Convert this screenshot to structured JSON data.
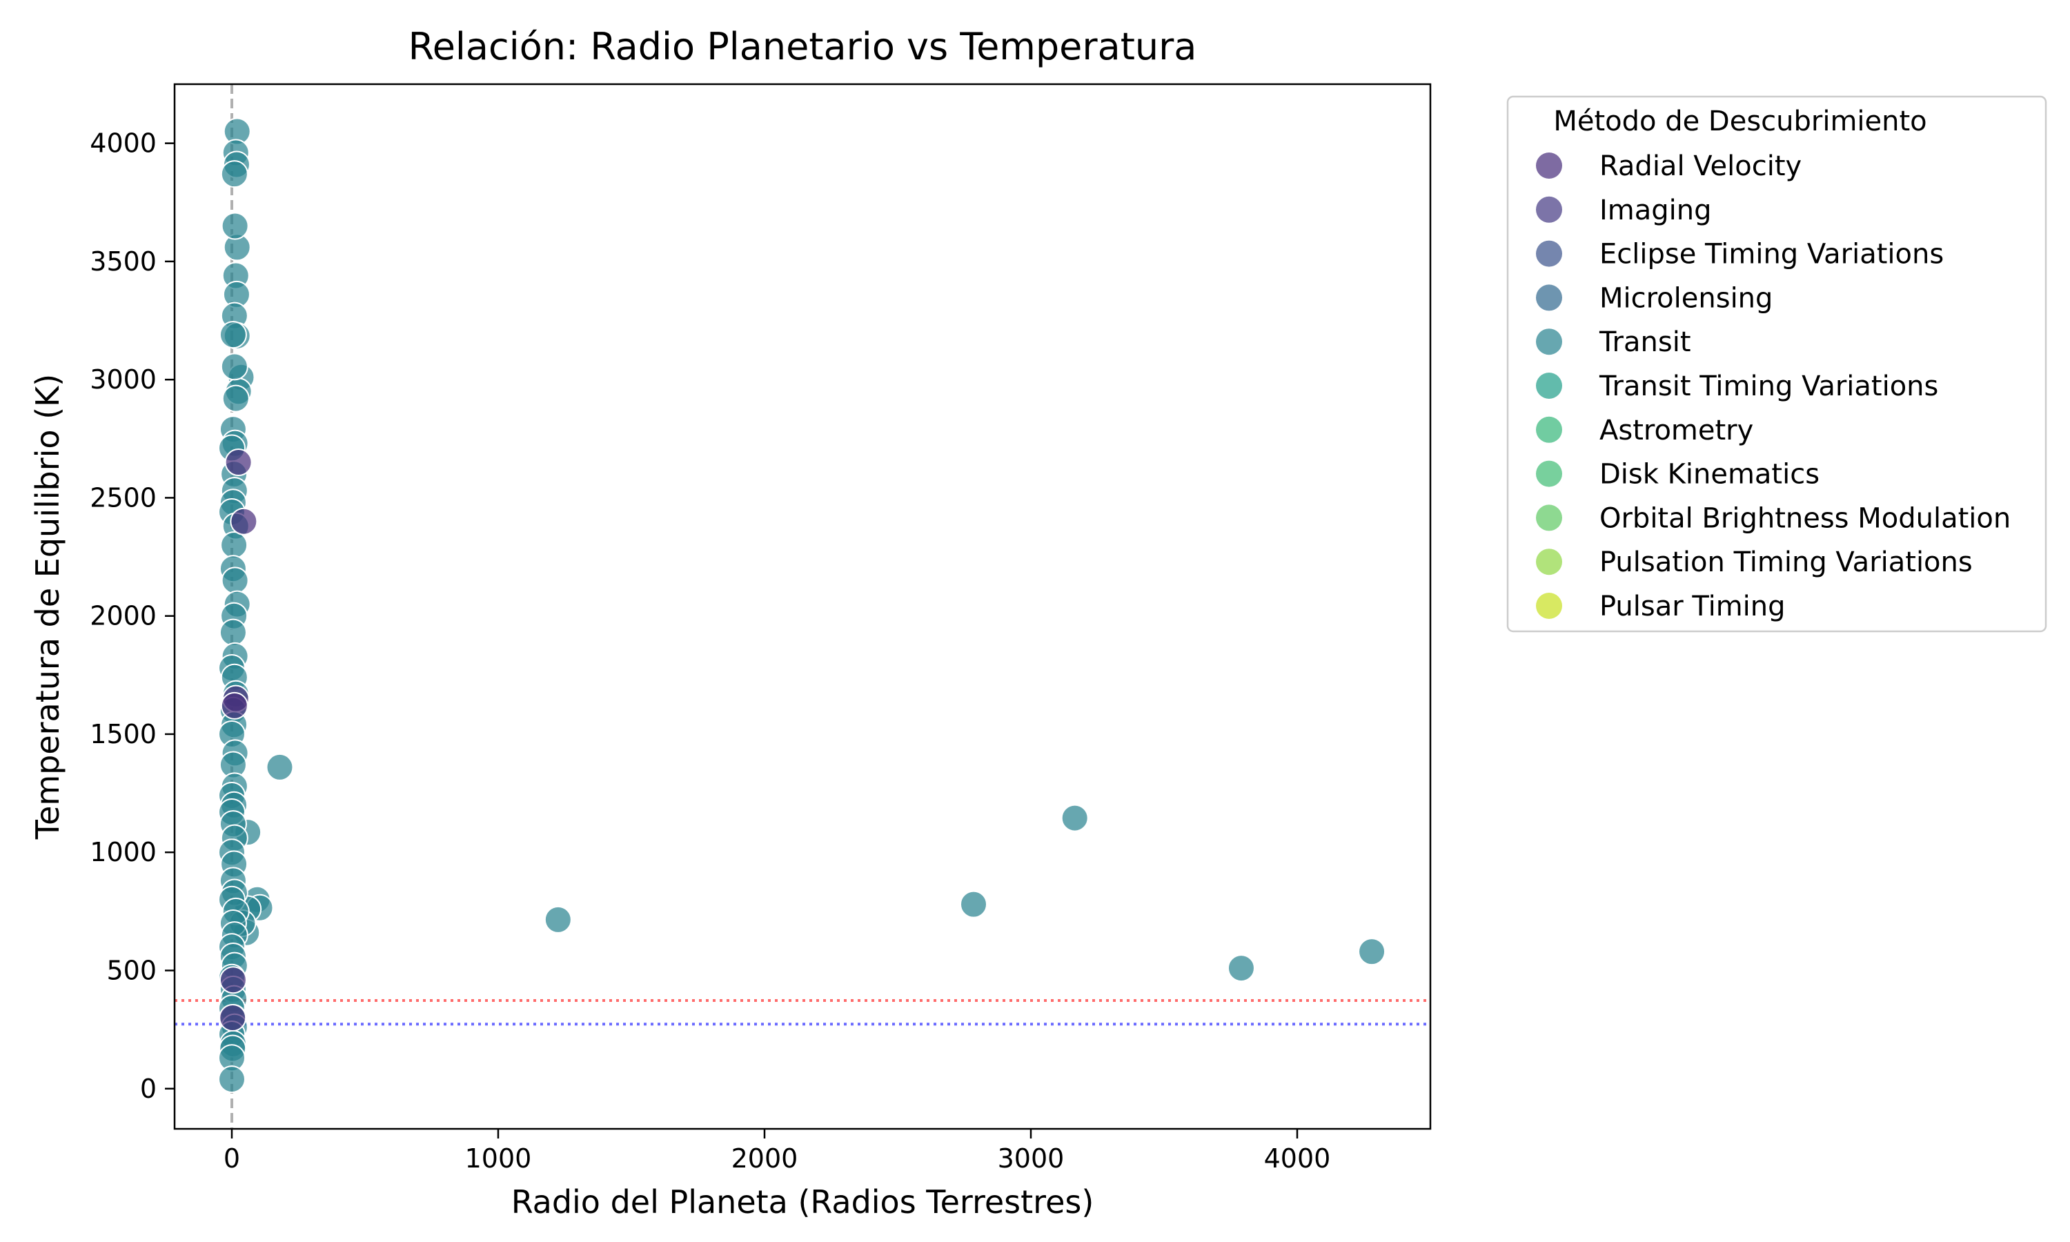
{
  "chart_data": {
    "type": "scatter",
    "title": "Relación: Radio Planetario vs Temperatura",
    "xlabel": "Radio del Planeta (Radios Terrestres)",
    "ylabel": "Temperatura de Equilibrio (K)",
    "xlim": [
      -215,
      4500
    ],
    "ylim": [
      -170,
      4250
    ],
    "xticks": [
      0,
      1000,
      2000,
      3000,
      4000
    ],
    "yticks": [
      0,
      500,
      1000,
      1500,
      2000,
      2500,
      3000,
      3500,
      4000
    ],
    "grid": false,
    "legend": {
      "title": "Método de Descubrimiento",
      "placement": "outside-right",
      "entries": [
        {
          "label": "Radial Velocity",
          "color": "#472c7a"
        },
        {
          "label": "Imaging",
          "color": "#443983"
        },
        {
          "label": "Eclipse Timing Variations",
          "color": "#3b528b"
        },
        {
          "label": "Microlensing",
          "color": "#31688e"
        },
        {
          "label": "Transit",
          "color": "#26828e"
        },
        {
          "label": "Transit Timing Variations",
          "color": "#1f9e89"
        },
        {
          "label": "Astrometry",
          "color": "#35b779"
        },
        {
          "label": "Disk Kinematics",
          "color": "#3fbc73"
        },
        {
          "label": "Orbital Brightness Modulation",
          "color": "#5ec962"
        },
        {
          "label": "Pulsation Timing Variations",
          "color": "#90d743"
        },
        {
          "label": "Pulsar Timing",
          "color": "#c8e020"
        }
      ]
    },
    "reference_lines": [
      {
        "orientation": "vertical",
        "x": 0,
        "color": "#b0b0b0",
        "style": "dashed"
      },
      {
        "orientation": "horizontal",
        "y": 373,
        "color": "#ff6b6b",
        "style": "dotted"
      },
      {
        "orientation": "horizontal",
        "y": 273,
        "color": "#6b6bff",
        "style": "dotted"
      }
    ],
    "series": [
      {
        "name": "Transit",
        "color": "#26828e",
        "points": [
          [
            180,
            1360
          ],
          [
            1225,
            715
          ],
          [
            2785,
            780
          ],
          [
            3165,
            1145
          ],
          [
            3790,
            510
          ],
          [
            4280,
            580
          ],
          [
            60,
            1085
          ],
          [
            95,
            800
          ],
          [
            105,
            765
          ],
          [
            60,
            760
          ],
          [
            55,
            660
          ],
          [
            40,
            700
          ],
          [
            35,
            3010
          ],
          [
            25,
            2950
          ],
          [
            20,
            4050
          ],
          [
            15,
            3960
          ],
          [
            18,
            3910
          ],
          [
            10,
            3870
          ],
          [
            20,
            3560
          ],
          [
            12,
            3650
          ],
          [
            15,
            3440
          ],
          [
            18,
            3360
          ],
          [
            10,
            3270
          ],
          [
            20,
            3185
          ],
          [
            5,
            3190
          ],
          [
            10,
            3055
          ],
          [
            15,
            2920
          ],
          [
            5,
            2790
          ],
          [
            12,
            2730
          ],
          [
            0,
            2710
          ],
          [
            8,
            2600
          ],
          [
            10,
            2530
          ],
          [
            5,
            2480
          ],
          [
            0,
            2440
          ],
          [
            15,
            2380
          ],
          [
            8,
            2300
          ],
          [
            5,
            2200
          ],
          [
            12,
            2150
          ],
          [
            20,
            2050
          ],
          [
            8,
            2000
          ],
          [
            5,
            1930
          ],
          [
            12,
            1830
          ],
          [
            0,
            1780
          ],
          [
            10,
            1740
          ],
          [
            15,
            1670
          ],
          [
            5,
            1600
          ],
          [
            8,
            1540
          ],
          [
            0,
            1500
          ],
          [
            12,
            1420
          ],
          [
            5,
            1370
          ],
          [
            10,
            1280
          ],
          [
            0,
            1240
          ],
          [
            8,
            1200
          ],
          [
            0,
            1170
          ],
          [
            5,
            1120
          ],
          [
            10,
            1060
          ],
          [
            0,
            1000
          ],
          [
            8,
            950
          ],
          [
            5,
            880
          ],
          [
            10,
            830
          ],
          [
            0,
            800
          ],
          [
            15,
            750
          ],
          [
            5,
            700
          ],
          [
            10,
            650
          ],
          [
            0,
            600
          ],
          [
            5,
            560
          ],
          [
            10,
            520
          ],
          [
            0,
            470
          ],
          [
            5,
            420
          ],
          [
            8,
            380
          ],
          [
            0,
            340
          ],
          [
            5,
            300
          ],
          [
            10,
            260
          ],
          [
            0,
            230
          ],
          [
            5,
            190
          ],
          [
            3,
            170
          ],
          [
            0,
            130
          ],
          [
            0,
            40
          ]
        ]
      },
      {
        "name": "Radial Velocity",
        "color": "#472c7a",
        "points": [
          [
            25,
            2650
          ],
          [
            45,
            2400
          ],
          [
            15,
            1650
          ],
          [
            10,
            1620
          ],
          [
            5,
            460
          ],
          [
            3,
            300
          ]
        ]
      }
    ]
  }
}
